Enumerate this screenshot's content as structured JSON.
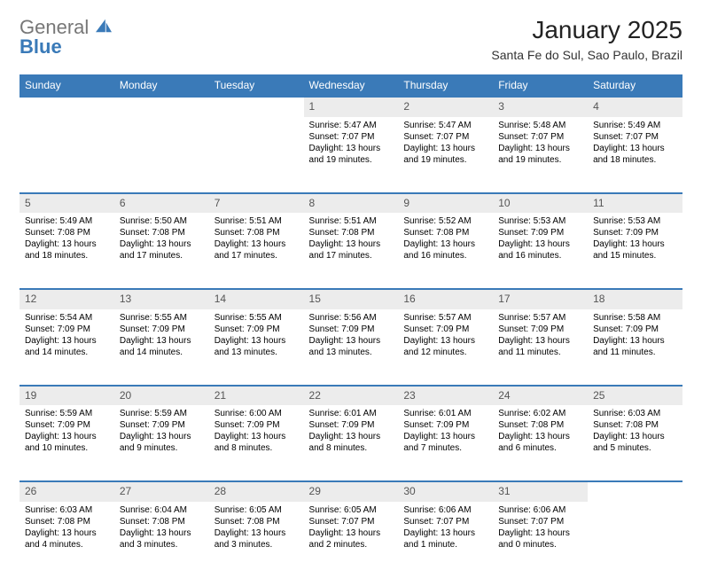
{
  "logo": {
    "text1": "General",
    "text2": "Blue",
    "icon_color": "#3a7ab8"
  },
  "title": "January 2025",
  "location": "Santa Fe do Sul, Sao Paulo, Brazil",
  "colors": {
    "header_bg": "#3a7ab8",
    "header_text": "#ffffff",
    "daynum_bg": "#ececec",
    "border_top": "#3a7ab8",
    "body_bg": "#ffffff",
    "text": "#000000"
  },
  "fonts": {
    "title_size": 28,
    "location_size": 14,
    "th_size": 12,
    "cell_size": 10
  },
  "weekdays": [
    "Sunday",
    "Monday",
    "Tuesday",
    "Wednesday",
    "Thursday",
    "Friday",
    "Saturday"
  ],
  "weeks": [
    [
      null,
      null,
      null,
      {
        "n": "1",
        "sr": "5:47 AM",
        "ss": "7:07 PM",
        "dl": "13 hours and 19 minutes."
      },
      {
        "n": "2",
        "sr": "5:47 AM",
        "ss": "7:07 PM",
        "dl": "13 hours and 19 minutes."
      },
      {
        "n": "3",
        "sr": "5:48 AM",
        "ss": "7:07 PM",
        "dl": "13 hours and 19 minutes."
      },
      {
        "n": "4",
        "sr": "5:49 AM",
        "ss": "7:07 PM",
        "dl": "13 hours and 18 minutes."
      }
    ],
    [
      {
        "n": "5",
        "sr": "5:49 AM",
        "ss": "7:08 PM",
        "dl": "13 hours and 18 minutes."
      },
      {
        "n": "6",
        "sr": "5:50 AM",
        "ss": "7:08 PM",
        "dl": "13 hours and 17 minutes."
      },
      {
        "n": "7",
        "sr": "5:51 AM",
        "ss": "7:08 PM",
        "dl": "13 hours and 17 minutes."
      },
      {
        "n": "8",
        "sr": "5:51 AM",
        "ss": "7:08 PM",
        "dl": "13 hours and 17 minutes."
      },
      {
        "n": "9",
        "sr": "5:52 AM",
        "ss": "7:08 PM",
        "dl": "13 hours and 16 minutes."
      },
      {
        "n": "10",
        "sr": "5:53 AM",
        "ss": "7:09 PM",
        "dl": "13 hours and 16 minutes."
      },
      {
        "n": "11",
        "sr": "5:53 AM",
        "ss": "7:09 PM",
        "dl": "13 hours and 15 minutes."
      }
    ],
    [
      {
        "n": "12",
        "sr": "5:54 AM",
        "ss": "7:09 PM",
        "dl": "13 hours and 14 minutes."
      },
      {
        "n": "13",
        "sr": "5:55 AM",
        "ss": "7:09 PM",
        "dl": "13 hours and 14 minutes."
      },
      {
        "n": "14",
        "sr": "5:55 AM",
        "ss": "7:09 PM",
        "dl": "13 hours and 13 minutes."
      },
      {
        "n": "15",
        "sr": "5:56 AM",
        "ss": "7:09 PM",
        "dl": "13 hours and 13 minutes."
      },
      {
        "n": "16",
        "sr": "5:57 AM",
        "ss": "7:09 PM",
        "dl": "13 hours and 12 minutes."
      },
      {
        "n": "17",
        "sr": "5:57 AM",
        "ss": "7:09 PM",
        "dl": "13 hours and 11 minutes."
      },
      {
        "n": "18",
        "sr": "5:58 AM",
        "ss": "7:09 PM",
        "dl": "13 hours and 11 minutes."
      }
    ],
    [
      {
        "n": "19",
        "sr": "5:59 AM",
        "ss": "7:09 PM",
        "dl": "13 hours and 10 minutes."
      },
      {
        "n": "20",
        "sr": "5:59 AM",
        "ss": "7:09 PM",
        "dl": "13 hours and 9 minutes."
      },
      {
        "n": "21",
        "sr": "6:00 AM",
        "ss": "7:09 PM",
        "dl": "13 hours and 8 minutes."
      },
      {
        "n": "22",
        "sr": "6:01 AM",
        "ss": "7:09 PM",
        "dl": "13 hours and 8 minutes."
      },
      {
        "n": "23",
        "sr": "6:01 AM",
        "ss": "7:09 PM",
        "dl": "13 hours and 7 minutes."
      },
      {
        "n": "24",
        "sr": "6:02 AM",
        "ss": "7:08 PM",
        "dl": "13 hours and 6 minutes."
      },
      {
        "n": "25",
        "sr": "6:03 AM",
        "ss": "7:08 PM",
        "dl": "13 hours and 5 minutes."
      }
    ],
    [
      {
        "n": "26",
        "sr": "6:03 AM",
        "ss": "7:08 PM",
        "dl": "13 hours and 4 minutes."
      },
      {
        "n": "27",
        "sr": "6:04 AM",
        "ss": "7:08 PM",
        "dl": "13 hours and 3 minutes."
      },
      {
        "n": "28",
        "sr": "6:05 AM",
        "ss": "7:08 PM",
        "dl": "13 hours and 3 minutes."
      },
      {
        "n": "29",
        "sr": "6:05 AM",
        "ss": "7:07 PM",
        "dl": "13 hours and 2 minutes."
      },
      {
        "n": "30",
        "sr": "6:06 AM",
        "ss": "7:07 PM",
        "dl": "13 hours and 1 minute."
      },
      {
        "n": "31",
        "sr": "6:06 AM",
        "ss": "7:07 PM",
        "dl": "13 hours and 0 minutes."
      },
      null
    ]
  ],
  "labels": {
    "sunrise": "Sunrise:",
    "sunset": "Sunset:",
    "daylight": "Daylight:"
  }
}
